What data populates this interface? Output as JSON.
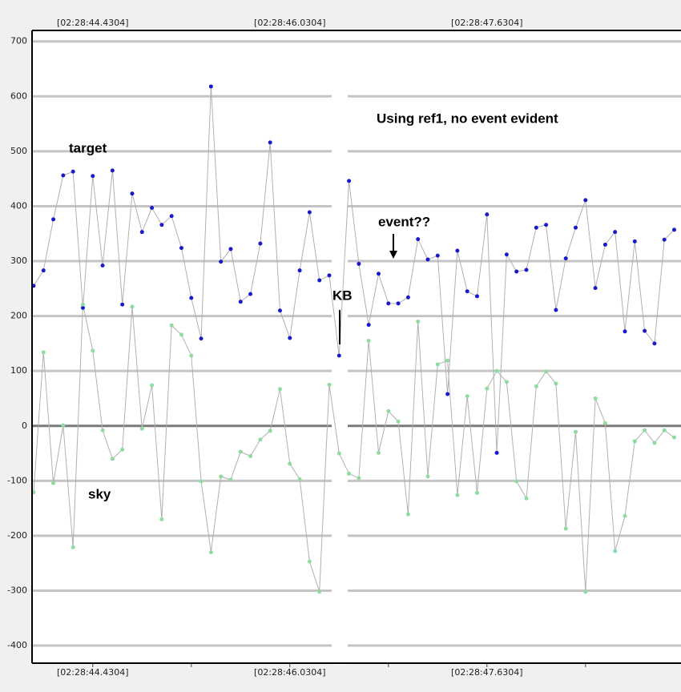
{
  "chart_data": {
    "type": "line",
    "annotations": {
      "series_target": "target",
      "series_sky": "sky",
      "note": "Using ref1, no event evident",
      "event": "event??",
      "kb": "KB"
    },
    "x": [
      0,
      1,
      2,
      3,
      4,
      5,
      6,
      7,
      8,
      9,
      10,
      11,
      12,
      13,
      14,
      15,
      16,
      17,
      18,
      19,
      20,
      21,
      22,
      23,
      24,
      25,
      26,
      27,
      28,
      29,
      30,
      31,
      32,
      33,
      34,
      35,
      36,
      37,
      38,
      39,
      40,
      41,
      42,
      43,
      44,
      45,
      46,
      47,
      48,
      49,
      50,
      51,
      52,
      53,
      54,
      55,
      56,
      57,
      58,
      59,
      60,
      61,
      62,
      63,
      64,
      65
    ],
    "series": [
      {
        "name": "target",
        "color": "#1a1acc",
        "line_color": "#b0b0b0",
        "values": [
          255,
          283,
          376,
          456,
          463,
          215,
          455,
          292,
          465,
          221,
          423,
          353,
          397,
          366,
          382,
          324,
          233,
          159,
          618,
          299,
          322,
          226,
          240,
          332,
          516,
          210,
          160,
          283,
          389,
          265,
          274,
          128,
          446,
          295,
          184,
          277,
          223,
          223,
          234,
          340,
          303,
          310,
          58,
          319,
          245,
          236,
          385,
          -49,
          312,
          281,
          284,
          361,
          366,
          211,
          305,
          361,
          411,
          251,
          330,
          353,
          172,
          336,
          173,
          150,
          339,
          357
        ]
      },
      {
        "name": "sky",
        "color": "#8fdca0",
        "line_color": "#b0b0b0",
        "values": [
          -121,
          134,
          -104,
          1,
          -221,
          221,
          137,
          -8,
          -60,
          -43,
          217,
          -5,
          74,
          -170,
          183,
          166,
          128,
          -101,
          -230,
          -92,
          -98,
          -47,
          -55,
          -25,
          -9,
          67,
          -69,
          -97,
          -247,
          -302,
          75,
          -50,
          -87,
          -95,
          155,
          -49,
          27,
          8,
          -161,
          190,
          -92,
          112,
          119,
          -126,
          54,
          -122,
          68,
          100,
          80,
          -101,
          -132,
          72,
          99,
          77,
          -187,
          -11,
          -302,
          50,
          5,
          -228,
          -164,
          -28,
          -8,
          -31,
          -8,
          -21
        ]
      }
    ],
    "xlim": [
      -0.16,
      65.69
    ],
    "xticks": [
      {
        "value": 6,
        "label": "[02:28:44.4304]"
      },
      {
        "value": 26,
        "label": "[02:28:46.0304]"
      },
      {
        "value": 46,
        "label": "[02:28:47.6304]"
      }
    ],
    "xminor_ticks": [
      16,
      36,
      56
    ],
    "ylim": [
      -432,
      720
    ],
    "yticks": [
      700,
      600,
      500,
      400,
      300,
      200,
      100,
      0,
      -100,
      -200,
      -300,
      -400
    ],
    "grid": true
  }
}
